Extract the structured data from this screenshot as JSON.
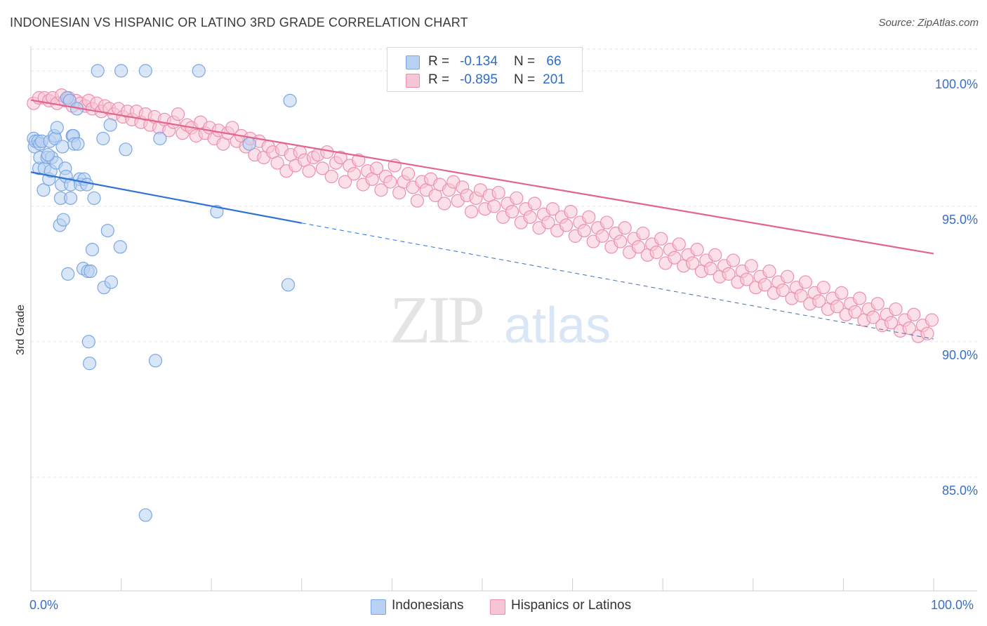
{
  "title": "INDONESIAN VS HISPANIC OR LATINO 3RD GRADE CORRELATION CHART",
  "source": "Source: ZipAtlas.com",
  "watermark": {
    "zip": "ZIP",
    "atlas": "atlas"
  },
  "colors": {
    "blue": "#7aa7e3",
    "blue_fill": "#b9d1f3",
    "blue_line": "#2f72d0",
    "pink": "#ec8fae",
    "pink_fill": "#f7c6d6",
    "pink_line": "#e0648c",
    "axis_label": "#3a6ec4",
    "grid": "#e3e3e3"
  },
  "legend": {
    "rows": [
      {
        "r_label": "R =",
        "r_value": "-0.134",
        "n_label": "N =",
        "n_value": "66",
        "series": "blue"
      },
      {
        "r_label": "R =",
        "r_value": "-0.895",
        "n_label": "N =",
        "n_value": "201",
        "series": "pink"
      }
    ]
  },
  "chart_data": {
    "type": "scatter",
    "title": "INDONESIAN VS HISPANIC OR LATINO 3RD GRADE CORRELATION CHART",
    "xlabel": "",
    "ylabel": "3rd Grade",
    "xlim": [
      0,
      100
    ],
    "ylim": [
      80.8,
      100.8
    ],
    "x_tick_labels": [
      "0.0%",
      "100.0%"
    ],
    "y_ticks": [
      85,
      90,
      95,
      100
    ],
    "y_tick_labels": [
      "85.0%",
      "90.0%",
      "95.0%",
      "100.0%"
    ],
    "grid": true,
    "legend_position": "bottom-center",
    "series": [
      {
        "name": "Indonesians",
        "color": "#7aa7e3",
        "trend": {
          "x0": 0,
          "y0": 96.26,
          "x1": 30,
          "y1": 94.38,
          "dashed_to_x": 100,
          "dashed_to_y": 90.1
        },
        "points": [
          [
            0.3,
            97.5
          ],
          [
            0.4,
            97.2
          ],
          [
            0.5,
            97.4
          ],
          [
            0.8,
            97.4
          ],
          [
            1.0,
            97.3
          ],
          [
            1.2,
            97.4
          ],
          [
            0.9,
            96.4
          ],
          [
            1.0,
            96.8
          ],
          [
            1.4,
            95.6
          ],
          [
            1.5,
            96.4
          ],
          [
            1.8,
            96.8
          ],
          [
            2.1,
            97.4
          ],
          [
            2.0,
            96.0
          ],
          [
            2.2,
            96.3
          ],
          [
            2.3,
            96.8
          ],
          [
            2.6,
            97.6
          ],
          [
            2.7,
            97.5
          ],
          [
            2.8,
            96.6
          ],
          [
            2.9,
            97.9
          ],
          [
            3.2,
            94.3
          ],
          [
            3.3,
            95.3
          ],
          [
            3.4,
            95.8
          ],
          [
            3.5,
            97.2
          ],
          [
            3.6,
            94.5
          ],
          [
            3.8,
            96.4
          ],
          [
            3.9,
            96.1
          ],
          [
            4.1,
            92.5
          ],
          [
            4.4,
            95.3
          ],
          [
            4.4,
            95.8
          ],
          [
            4.6,
            97.6
          ],
          [
            4.7,
            97.6
          ],
          [
            4.8,
            97.3
          ],
          [
            4.0,
            99.0
          ],
          [
            4.3,
            98.9
          ],
          [
            5.1,
            98.6
          ],
          [
            5.2,
            97.3
          ],
          [
            5.4,
            96.0
          ],
          [
            5.5,
            95.8
          ],
          [
            5.8,
            92.7
          ],
          [
            5.9,
            96.0
          ],
          [
            6.2,
            95.8
          ],
          [
            6.3,
            92.6
          ],
          [
            6.4,
            90.0
          ],
          [
            6.6,
            92.6
          ],
          [
            6.8,
            93.4
          ],
          [
            7.0,
            95.3
          ],
          [
            7.4,
            100.0
          ],
          [
            8.0,
            97.5
          ],
          [
            8.1,
            92.0
          ],
          [
            8.5,
            94.1
          ],
          [
            8.8,
            98.0
          ],
          [
            8.9,
            92.2
          ],
          [
            9.9,
            93.5
          ],
          [
            10.0,
            100.0
          ],
          [
            10.5,
            97.1
          ],
          [
            12.7,
            100.0
          ],
          [
            13.8,
            89.3
          ],
          [
            14.3,
            97.5
          ],
          [
            18.6,
            100.0
          ],
          [
            20.6,
            94.8
          ],
          [
            24.2,
            97.3
          ],
          [
            28.5,
            92.1
          ],
          [
            28.7,
            98.9
          ],
          [
            6.5,
            89.2
          ],
          [
            12.7,
            83.6
          ],
          [
            1.9,
            96.9
          ]
        ]
      },
      {
        "name": "Hispanics or Latinos",
        "color": "#ec8fae",
        "trend": {
          "x0": 0,
          "y0": 98.92,
          "x1": 100,
          "y1": 93.25
        },
        "points": [
          [
            0.3,
            98.8
          ],
          [
            0.9,
            99.0
          ],
          [
            1.5,
            99.0
          ],
          [
            2.0,
            98.9
          ],
          [
            2.4,
            99.0
          ],
          [
            2.9,
            98.8
          ],
          [
            3.4,
            99.1
          ],
          [
            3.8,
            98.9
          ],
          [
            4.2,
            99.0
          ],
          [
            4.6,
            98.7
          ],
          [
            5.0,
            98.9
          ],
          [
            5.5,
            98.8
          ],
          [
            6.0,
            98.7
          ],
          [
            6.4,
            98.9
          ],
          [
            6.8,
            98.6
          ],
          [
            7.3,
            98.8
          ],
          [
            7.8,
            98.5
          ],
          [
            8.2,
            98.7
          ],
          [
            8.7,
            98.6
          ],
          [
            9.2,
            98.4
          ],
          [
            9.7,
            98.6
          ],
          [
            10.2,
            98.3
          ],
          [
            10.7,
            98.5
          ],
          [
            11.2,
            98.2
          ],
          [
            11.7,
            98.5
          ],
          [
            12.2,
            98.1
          ],
          [
            12.7,
            98.4
          ],
          [
            13.2,
            98.0
          ],
          [
            13.7,
            98.3
          ],
          [
            14.2,
            97.9
          ],
          [
            14.8,
            98.2
          ],
          [
            15.3,
            97.8
          ],
          [
            15.8,
            98.1
          ],
          [
            16.3,
            98.4
          ],
          [
            16.8,
            97.7
          ],
          [
            17.3,
            98.0
          ],
          [
            17.8,
            97.9
          ],
          [
            18.3,
            97.6
          ],
          [
            18.8,
            98.1
          ],
          [
            19.3,
            97.7
          ],
          [
            19.8,
            97.9
          ],
          [
            20.3,
            97.5
          ],
          [
            20.8,
            97.8
          ],
          [
            21.3,
            97.3
          ],
          [
            21.8,
            97.7
          ],
          [
            22.3,
            97.9
          ],
          [
            22.8,
            97.4
          ],
          [
            23.3,
            97.6
          ],
          [
            23.8,
            97.2
          ],
          [
            24.3,
            97.5
          ],
          [
            24.8,
            96.9
          ],
          [
            25.3,
            97.4
          ],
          [
            25.8,
            96.8
          ],
          [
            26.3,
            97.2
          ],
          [
            26.8,
            97.0
          ],
          [
            27.3,
            96.6
          ],
          [
            27.8,
            97.1
          ],
          [
            28.3,
            96.3
          ],
          [
            28.8,
            96.9
          ],
          [
            29.3,
            96.5
          ],
          [
            29.8,
            97.0
          ],
          [
            30.3,
            96.7
          ],
          [
            30.8,
            96.3
          ],
          [
            31.3,
            96.8
          ],
          [
            31.8,
            96.9
          ],
          [
            32.3,
            96.4
          ],
          [
            32.8,
            97.0
          ],
          [
            33.3,
            96.1
          ],
          [
            33.8,
            96.6
          ],
          [
            34.3,
            96.8
          ],
          [
            34.8,
            95.9
          ],
          [
            35.3,
            96.5
          ],
          [
            35.8,
            96.2
          ],
          [
            36.3,
            96.7
          ],
          [
            36.8,
            95.8
          ],
          [
            37.3,
            96.3
          ],
          [
            37.8,
            96.0
          ],
          [
            38.3,
            96.4
          ],
          [
            38.8,
            95.6
          ],
          [
            39.3,
            96.1
          ],
          [
            39.8,
            95.9
          ],
          [
            40.3,
            96.5
          ],
          [
            40.8,
            95.5
          ],
          [
            41.3,
            95.9
          ],
          [
            41.8,
            96.2
          ],
          [
            42.3,
            95.7
          ],
          [
            42.8,
            95.2
          ],
          [
            43.3,
            95.9
          ],
          [
            43.8,
            95.6
          ],
          [
            44.3,
            96.0
          ],
          [
            44.8,
            95.4
          ],
          [
            45.3,
            95.8
          ],
          [
            45.8,
            95.1
          ],
          [
            46.3,
            95.6
          ],
          [
            46.8,
            95.9
          ],
          [
            47.3,
            95.2
          ],
          [
            47.8,
            95.7
          ],
          [
            48.3,
            95.4
          ],
          [
            48.8,
            94.8
          ],
          [
            49.3,
            95.3
          ],
          [
            49.8,
            95.6
          ],
          [
            50.3,
            94.9
          ],
          [
            50.8,
            95.4
          ],
          [
            51.3,
            95.0
          ],
          [
            51.8,
            95.5
          ],
          [
            52.3,
            94.6
          ],
          [
            52.8,
            95.1
          ],
          [
            53.3,
            94.8
          ],
          [
            53.8,
            95.3
          ],
          [
            54.3,
            94.4
          ],
          [
            54.8,
            94.9
          ],
          [
            55.3,
            94.6
          ],
          [
            55.8,
            95.1
          ],
          [
            56.3,
            94.2
          ],
          [
            56.8,
            94.7
          ],
          [
            57.3,
            94.4
          ],
          [
            57.8,
            94.9
          ],
          [
            58.3,
            94.1
          ],
          [
            58.8,
            94.6
          ],
          [
            59.3,
            94.3
          ],
          [
            59.8,
            94.8
          ],
          [
            60.3,
            93.9
          ],
          [
            60.8,
            94.4
          ],
          [
            61.3,
            94.1
          ],
          [
            61.8,
            94.6
          ],
          [
            62.3,
            93.7
          ],
          [
            62.8,
            94.2
          ],
          [
            63.3,
            93.9
          ],
          [
            63.8,
            94.4
          ],
          [
            64.3,
            93.5
          ],
          [
            64.8,
            94.0
          ],
          [
            65.3,
            93.7
          ],
          [
            65.8,
            94.2
          ],
          [
            66.3,
            93.3
          ],
          [
            66.8,
            93.8
          ],
          [
            67.3,
            93.5
          ],
          [
            67.8,
            94.0
          ],
          [
            68.3,
            93.2
          ],
          [
            68.8,
            93.6
          ],
          [
            69.3,
            93.3
          ],
          [
            69.8,
            93.8
          ],
          [
            70.3,
            92.9
          ],
          [
            70.8,
            93.4
          ],
          [
            71.3,
            93.1
          ],
          [
            71.8,
            93.6
          ],
          [
            72.3,
            92.8
          ],
          [
            72.8,
            93.2
          ],
          [
            73.3,
            92.9
          ],
          [
            73.8,
            93.4
          ],
          [
            74.3,
            92.6
          ],
          [
            74.8,
            93.0
          ],
          [
            75.3,
            92.7
          ],
          [
            75.8,
            93.2
          ],
          [
            76.3,
            92.4
          ],
          [
            76.8,
            92.8
          ],
          [
            77.3,
            92.5
          ],
          [
            77.8,
            93.0
          ],
          [
            78.3,
            92.2
          ],
          [
            78.8,
            92.6
          ],
          [
            79.3,
            92.3
          ],
          [
            79.8,
            92.8
          ],
          [
            80.3,
            92.0
          ],
          [
            80.8,
            92.4
          ],
          [
            81.3,
            92.1
          ],
          [
            81.8,
            92.6
          ],
          [
            82.3,
            91.8
          ],
          [
            82.8,
            92.2
          ],
          [
            83.3,
            91.9
          ],
          [
            83.8,
            92.4
          ],
          [
            84.3,
            91.6
          ],
          [
            84.8,
            92.0
          ],
          [
            85.3,
            91.7
          ],
          [
            85.8,
            92.2
          ],
          [
            86.3,
            91.4
          ],
          [
            86.8,
            91.8
          ],
          [
            87.3,
            91.5
          ],
          [
            87.8,
            92.0
          ],
          [
            88.3,
            91.2
          ],
          [
            88.8,
            91.6
          ],
          [
            89.3,
            91.3
          ],
          [
            89.8,
            91.8
          ],
          [
            90.3,
            91.0
          ],
          [
            90.8,
            91.4
          ],
          [
            91.3,
            91.1
          ],
          [
            91.8,
            91.6
          ],
          [
            92.3,
            90.8
          ],
          [
            92.8,
            91.2
          ],
          [
            93.3,
            90.9
          ],
          [
            93.8,
            91.4
          ],
          [
            94.3,
            90.6
          ],
          [
            94.8,
            91.0
          ],
          [
            95.3,
            90.7
          ],
          [
            95.8,
            91.2
          ],
          [
            96.3,
            90.4
          ],
          [
            96.8,
            90.8
          ],
          [
            97.3,
            90.5
          ],
          [
            97.8,
            91.0
          ],
          [
            98.3,
            90.2
          ],
          [
            98.8,
            90.6
          ],
          [
            99.3,
            90.3
          ],
          [
            99.8,
            90.8
          ]
        ]
      }
    ]
  },
  "bottom_legend": [
    {
      "label": "Indonesians",
      "series": "blue"
    },
    {
      "label": "Hispanics or Latinos",
      "series": "pink"
    }
  ],
  "x_axis": {
    "left_label": "0.0%",
    "right_label": "100.0%"
  }
}
